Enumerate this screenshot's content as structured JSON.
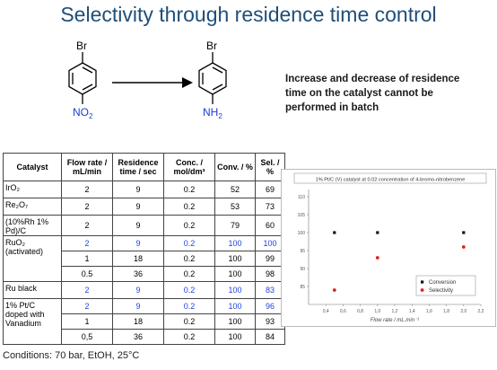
{
  "title": "Selectivity through residence time control",
  "reaction": {
    "left_br": "Br",
    "left_no2": "NO",
    "left_no2_sub": "2",
    "right_br": "Br",
    "right_nh2": "NH",
    "right_nh2_sub": "2"
  },
  "note": "Increase and decrease of residence time on the catalyst cannot be performed in batch",
  "table": {
    "headers": [
      "Catalyst",
      "Flow rate / mL/min",
      "Residence time / sec",
      "Conc. / mol/dm³",
      "Conv. / %",
      "Sel. / %"
    ],
    "groups": [
      {
        "catalyst": "IrO₂",
        "rows": [
          {
            "flow": "2",
            "res": "9",
            "conc": "0.2",
            "conv": "52",
            "sel": "69",
            "blue": false
          }
        ]
      },
      {
        "catalyst": "Re₂O₇",
        "rows": [
          {
            "flow": "2",
            "res": "9",
            "conc": "0.2",
            "conv": "53",
            "sel": "73",
            "blue": false
          }
        ]
      },
      {
        "catalyst": "(10%Rh 1% Pd)/C",
        "rows": [
          {
            "flow": "2",
            "res": "9",
            "conc": "0.2",
            "conv": "79",
            "sel": "60",
            "blue": false
          }
        ]
      },
      {
        "catalyst": "RuO₂ (activated)",
        "rows": [
          {
            "flow": "2",
            "res": "9",
            "conc": "0.2",
            "conv": "100",
            "sel": "100",
            "blue": true
          },
          {
            "flow": "1",
            "res": "18",
            "conc": "0.2",
            "conv": "100",
            "sel": "99",
            "blue": false
          },
          {
            "flow": "0.5",
            "res": "36",
            "conc": "0.2",
            "conv": "100",
            "sel": "98",
            "blue": false
          }
        ]
      },
      {
        "catalyst": "Ru black",
        "rows": [
          {
            "flow": "2",
            "res": "9",
            "conc": "0.2",
            "conv": "100",
            "sel": "83",
            "blue": true
          }
        ]
      },
      {
        "catalyst": "1% Pt/C doped with Vanadium",
        "rows": [
          {
            "flow": "2",
            "res": "9",
            "conc": "0.2",
            "conv": "100",
            "sel": "96",
            "blue": true
          },
          {
            "flow": "1",
            "res": "18",
            "conc": "0.2",
            "conv": "100",
            "sel": "93",
            "blue": false
          },
          {
            "flow": "0,5",
            "res": "36",
            "conc": "0.2",
            "conv": "100",
            "sel": "84",
            "blue": false
          }
        ]
      }
    ]
  },
  "chart_data": {
    "type": "scatter",
    "title": "1% Pt/C (V) catalyst at 0.02 concentration of 4-bromo-nitrobenzene",
    "xlabel": "Flow rate / mL.min⁻¹",
    "ylabel": "",
    "xlim": [
      0.2,
      2.2
    ],
    "ylim": [
      80,
      112
    ],
    "x_ticks": [
      "0,4",
      "0,6",
      "0,8",
      "1,0",
      "1,2",
      "1,4",
      "1,6",
      "1,8",
      "2,0",
      "2,2"
    ],
    "y_ticks": [
      "110",
      "105",
      "100",
      "95",
      "90",
      "85"
    ],
    "series": [
      {
        "name": "Conversion",
        "color": "#111111",
        "x": [
          0.5,
          1.0,
          2.0
        ],
        "y": [
          100,
          100,
          100
        ]
      },
      {
        "name": "Selectivity",
        "color": "#e02020",
        "x": [
          0.5,
          1.0,
          2.0
        ],
        "y": [
          84,
          93,
          96
        ]
      }
    ],
    "legend": "bottom-right"
  },
  "conditions": "Conditions: 70 bar, EtOH, 25°C"
}
